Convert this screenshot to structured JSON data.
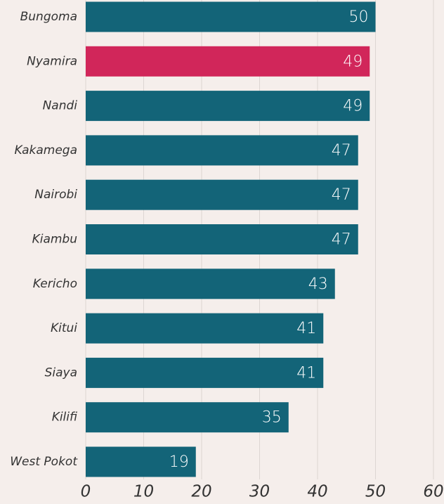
{
  "chart_data": {
    "type": "bar",
    "orientation": "horizontal",
    "categories": [
      "Bungoma",
      "Nyamira",
      "Nandi",
      "Kakamega",
      "Nairobi",
      "Kiambu",
      "Kericho",
      "Kitui",
      "Siaya",
      "Kilifi",
      "West Pokot"
    ],
    "values": [
      50,
      49,
      49,
      47,
      47,
      47,
      43,
      41,
      41,
      35,
      19
    ],
    "colors": [
      "#136478",
      "#d1265a",
      "#136478",
      "#136478",
      "#136478",
      "#136478",
      "#136478",
      "#136478",
      "#136478",
      "#136478",
      "#136478"
    ],
    "xlim": [
      0,
      60
    ],
    "xticks": [
      0,
      10,
      20,
      30,
      40,
      50,
      60
    ],
    "grid": true
  }
}
